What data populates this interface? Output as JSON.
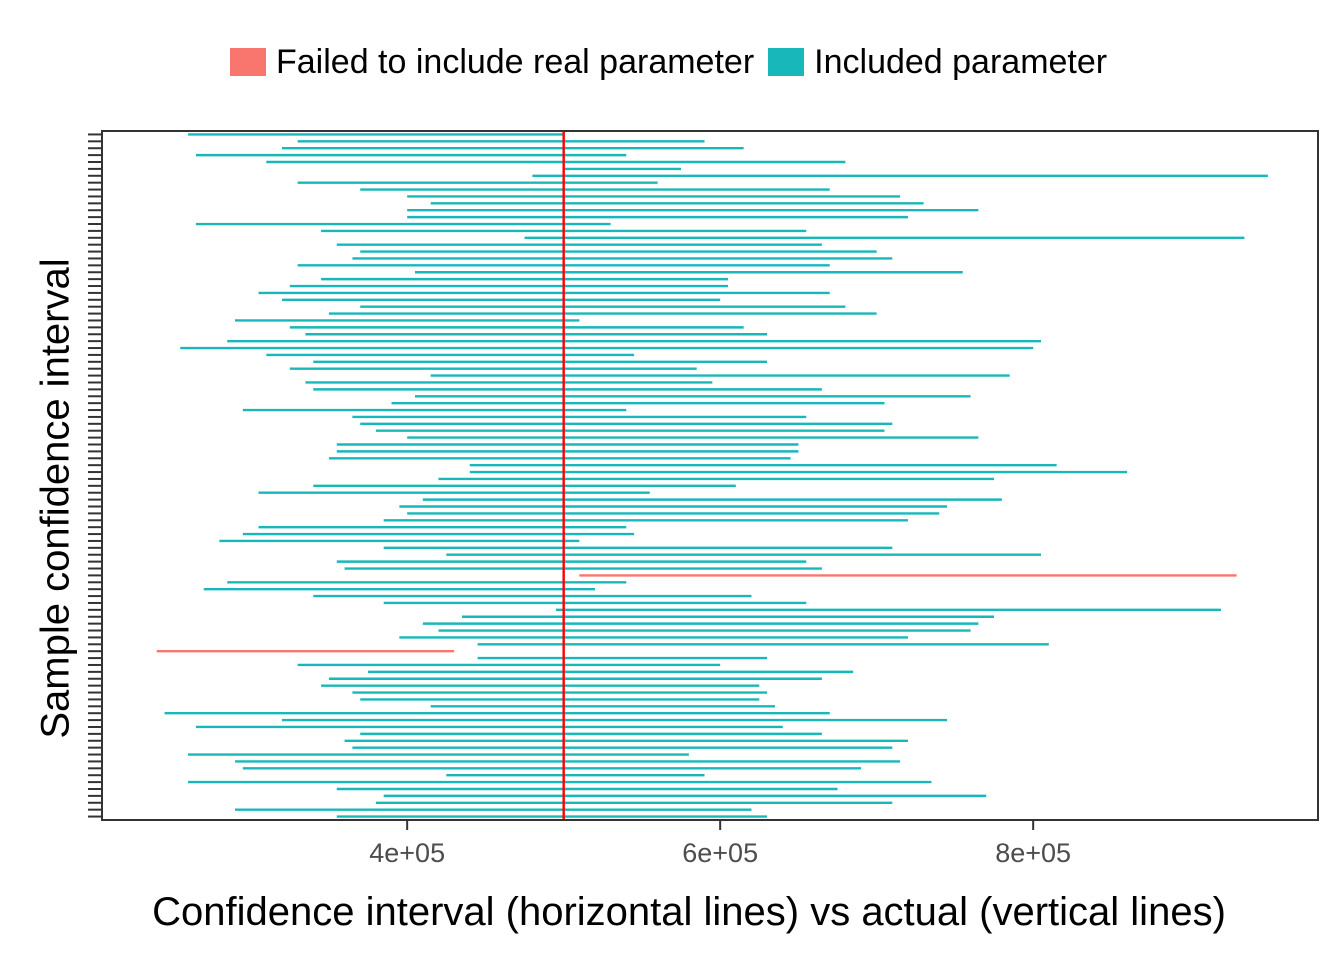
{
  "colors": {
    "failed": "#F8766D",
    "included": "#18B7BA",
    "actual_line": "#FF0000",
    "panel_border": "#333333",
    "tick_text": "#4d4d4d"
  },
  "legend": {
    "items": [
      {
        "label": "Failed to include real parameter",
        "color": "#F8766D"
      },
      {
        "label": "Included parameter",
        "color": "#18B7BA"
      }
    ],
    "position": "top"
  },
  "chart_data": {
    "type": "interval",
    "title": "",
    "xlabel": "Confidence interval (horizontal lines) vs actual (vertical lines)",
    "ylabel": "Sample confidence interval",
    "x_ticks": [
      400000,
      600000,
      800000
    ],
    "x_tick_labels": [
      "4e+05",
      "6e+05",
      "8e+05"
    ],
    "xlim": [
      205000,
      982000
    ],
    "ylim": [
      0.5,
      100.5
    ],
    "grid": false,
    "actual_value": 500000,
    "intervals": [
      [
        355000,
        630000,
        "included"
      ],
      [
        290000,
        620000,
        "included"
      ],
      [
        380000,
        710000,
        "included"
      ],
      [
        385000,
        770000,
        "included"
      ],
      [
        355000,
        675000,
        "included"
      ],
      [
        260000,
        735000,
        "included"
      ],
      [
        425000,
        590000,
        "included"
      ],
      [
        295000,
        690000,
        "included"
      ],
      [
        290000,
        715000,
        "included"
      ],
      [
        260000,
        580000,
        "included"
      ],
      [
        365000,
        710000,
        "included"
      ],
      [
        360000,
        720000,
        "included"
      ],
      [
        370000,
        665000,
        "included"
      ],
      [
        265000,
        640000,
        "included"
      ],
      [
        320000,
        745000,
        "included"
      ],
      [
        245000,
        670000,
        "included"
      ],
      [
        415000,
        635000,
        "included"
      ],
      [
        370000,
        625000,
        "included"
      ],
      [
        365000,
        630000,
        "included"
      ],
      [
        345000,
        625000,
        "included"
      ],
      [
        350000,
        665000,
        "included"
      ],
      [
        375000,
        685000,
        "included"
      ],
      [
        330000,
        600000,
        "included"
      ],
      [
        445000,
        630000,
        "included"
      ],
      [
        240000,
        430000,
        "failed"
      ],
      [
        445000,
        810000,
        "included"
      ],
      [
        395000,
        720000,
        "included"
      ],
      [
        420000,
        760000,
        "included"
      ],
      [
        410000,
        765000,
        "included"
      ],
      [
        435000,
        775000,
        "included"
      ],
      [
        495000,
        920000,
        "included"
      ],
      [
        385000,
        655000,
        "included"
      ],
      [
        340000,
        620000,
        "included"
      ],
      [
        270000,
        520000,
        "included"
      ],
      [
        285000,
        540000,
        "included"
      ],
      [
        510000,
        930000,
        "failed"
      ],
      [
        360000,
        665000,
        "included"
      ],
      [
        355000,
        655000,
        "included"
      ],
      [
        425000,
        805000,
        "included"
      ],
      [
        385000,
        710000,
        "included"
      ],
      [
        280000,
        510000,
        "included"
      ],
      [
        295000,
        545000,
        "included"
      ],
      [
        305000,
        540000,
        "included"
      ],
      [
        385000,
        720000,
        "included"
      ],
      [
        400000,
        740000,
        "included"
      ],
      [
        395000,
        745000,
        "included"
      ],
      [
        410000,
        780000,
        "included"
      ],
      [
        305000,
        555000,
        "included"
      ],
      [
        340000,
        610000,
        "included"
      ],
      [
        420000,
        775000,
        "included"
      ],
      [
        440000,
        860000,
        "included"
      ],
      [
        440000,
        815000,
        "included"
      ],
      [
        350000,
        645000,
        "included"
      ],
      [
        355000,
        650000,
        "included"
      ],
      [
        355000,
        650000,
        "included"
      ],
      [
        400000,
        765000,
        "included"
      ],
      [
        380000,
        705000,
        "included"
      ],
      [
        370000,
        710000,
        "included"
      ],
      [
        365000,
        655000,
        "included"
      ],
      [
        295000,
        540000,
        "included"
      ],
      [
        390000,
        705000,
        "included"
      ],
      [
        405000,
        760000,
        "included"
      ],
      [
        340000,
        665000,
        "included"
      ],
      [
        335000,
        595000,
        "included"
      ],
      [
        415000,
        785000,
        "included"
      ],
      [
        325000,
        585000,
        "included"
      ],
      [
        340000,
        630000,
        "included"
      ],
      [
        310000,
        545000,
        "included"
      ],
      [
        255000,
        800000,
        "included"
      ],
      [
        285000,
        805000,
        "included"
      ],
      [
        335000,
        630000,
        "included"
      ],
      [
        325000,
        615000,
        "included"
      ],
      [
        290000,
        510000,
        "included"
      ],
      [
        350000,
        700000,
        "included"
      ],
      [
        370000,
        680000,
        "included"
      ],
      [
        320000,
        600000,
        "included"
      ],
      [
        305000,
        670000,
        "included"
      ],
      [
        325000,
        605000,
        "included"
      ],
      [
        345000,
        605000,
        "included"
      ],
      [
        405000,
        755000,
        "included"
      ],
      [
        330000,
        670000,
        "included"
      ],
      [
        365000,
        710000,
        "included"
      ],
      [
        370000,
        700000,
        "included"
      ],
      [
        355000,
        665000,
        "included"
      ],
      [
        475000,
        935000,
        "included"
      ],
      [
        345000,
        655000,
        "included"
      ],
      [
        265000,
        530000,
        "included"
      ],
      [
        400000,
        720000,
        "included"
      ],
      [
        400000,
        765000,
        "included"
      ],
      [
        415000,
        730000,
        "included"
      ],
      [
        400000,
        715000,
        "included"
      ],
      [
        370000,
        670000,
        "included"
      ],
      [
        330000,
        560000,
        "included"
      ],
      [
        480000,
        950000,
        "included"
      ],
      [
        500000,
        575000,
        "included"
      ],
      [
        310000,
        680000,
        "included"
      ],
      [
        265000,
        540000,
        "included"
      ],
      [
        320000,
        615000,
        "included"
      ],
      [
        330000,
        590000,
        "included"
      ],
      [
        260000,
        500000,
        "included"
      ]
    ]
  }
}
